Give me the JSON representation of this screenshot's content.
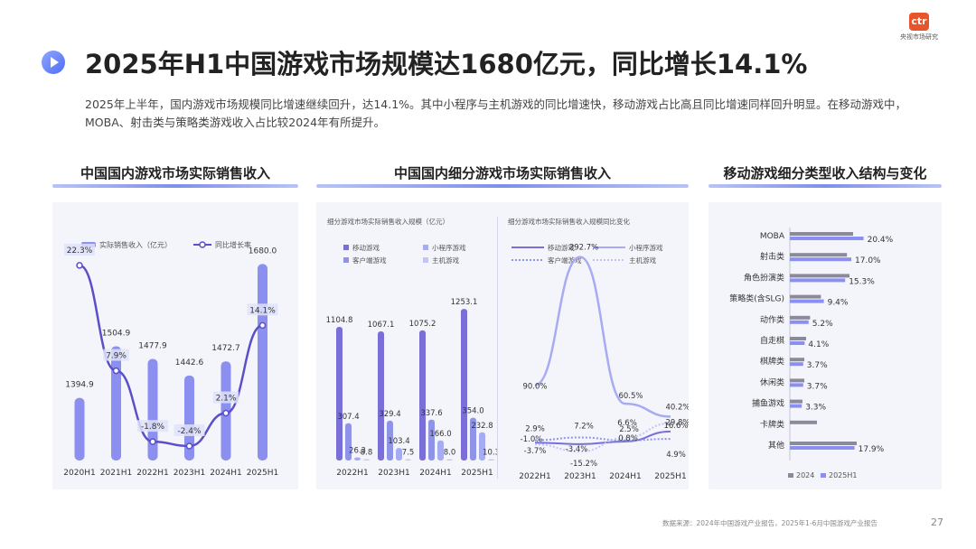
{
  "header": {
    "title": "2025年H1中国游戏市场规模达1680亿元，同比增长14.1%",
    "logo_text": "ctr",
    "logo_subtext": "央视市场研究",
    "description": "2025年上半年，国内游戏市场规模同比增速继续回升，达14.1%。其中小程序与主机游戏的同比增速快，移动游戏占比高且同比增速同样回升明显。在移动游戏中，MOBA、射击类与策略类游戏收入占比较2024年有所提升。"
  },
  "sections": {
    "s1": "中国国内游戏市场实际销售收入",
    "s2": "中国国内细分游戏市场实际销售收入",
    "s3": "移动游戏细分类型收入结构与变化"
  },
  "footer": {
    "source": "数据来源：2024年中国游戏产业报告，2025年1-6月中国游戏产业报告",
    "page": "27"
  },
  "colors": {
    "bar_main": "#8b8ff0",
    "line_main": "#5b4fc8",
    "mobile": "#7a6fd6",
    "mini": "#a7abf2",
    "client": "#8e95e8",
    "console": "#c2c6f5",
    "bar2024": "#8a8a9a",
    "bar2025": "#8b8ff0"
  },
  "chart_data": [
    {
      "type": "bar",
      "categories": [
        "2020H1",
        "2021H1",
        "2022H1",
        "2023H1",
        "2024H1",
        "2025H1"
      ],
      "legend": [
        "实际销售收入（亿元）",
        "同比增长率"
      ],
      "series": [
        {
          "name": "实际销售收入（亿元）",
          "values": [
            1394.9,
            1504.9,
            1477.9,
            1442.6,
            1472.7,
            1680.0
          ],
          "labels": [
            "1394.9",
            "1504.9",
            "1477.9",
            "1442.6",
            "1472.7",
            "1680.0"
          ]
        },
        {
          "name": "同比增长率",
          "type": "line",
          "values": [
            22.3,
            7.9,
            -1.8,
            -2.4,
            2.1,
            14.1
          ],
          "labels": [
            "22.3%",
            "7.9%",
            "-1.8%",
            "-2.4%",
            "2.1%",
            "14.1%"
          ]
        }
      ]
    },
    {
      "type": "bar",
      "subtitle": "细分游戏市场实际销售收入规模（亿元）",
      "categories": [
        "2022H1",
        "2023H1",
        "2024H1",
        "2025H1"
      ],
      "legend": [
        "移动游戏",
        "小程序游戏",
        "客户端游戏",
        "主机游戏"
      ],
      "series": [
        {
          "name": "移动游戏",
          "values": [
            1104.8,
            1067.1,
            1075.2,
            1253.1
          ],
          "labels": [
            "1104.8",
            "1067.1",
            "1075.2",
            "1253.1"
          ]
        },
        {
          "name": "客户端游戏",
          "values": [
            307.4,
            329.4,
            337.6,
            354.0
          ],
          "labels": [
            "307.4",
            "329.4",
            "337.6",
            "354.0"
          ]
        },
        {
          "name": "小程序游戏",
          "values": [
            26.3,
            103.4,
            166.0,
            232.8
          ],
          "labels": [
            "26.3",
            "103.4",
            "166.0",
            "232.8"
          ]
        },
        {
          "name": "主机游戏",
          "values": [
            8.8,
            7.5,
            8.0,
            10.3
          ],
          "labels": [
            "8.8",
            "7.5",
            "8.0",
            "10.3"
          ]
        }
      ]
    },
    {
      "type": "line",
      "subtitle": "细分游戏市场实际销售收入规模同比变化",
      "categories": [
        "2022H1",
        "2023H1",
        "2024H1",
        "2025H1"
      ],
      "legend": [
        "移动游戏",
        "小程序游戏",
        "客户端游戏",
        "主机游戏"
      ],
      "series": [
        {
          "name": "移动游戏",
          "values": [
            -1.0,
            -3.4,
            0.8,
            16.6
          ],
          "labels": [
            "-1.0%",
            "-3.4%",
            "0.8%",
            "16.6%"
          ]
        },
        {
          "name": "小程序游戏",
          "values": [
            90.0,
            292.7,
            60.5,
            40.2
          ],
          "labels": [
            "90.0%",
            "292.7%",
            "60.5%",
            "40.2%"
          ]
        },
        {
          "name": "客户端游戏",
          "values": [
            2.9,
            7.2,
            2.5,
            4.9
          ],
          "labels": [
            "2.9%",
            "7.2%",
            "2.5%",
            "4.9%"
          ]
        },
        {
          "name": "主机游戏",
          "values": [
            -3.7,
            -15.2,
            6.6,
            29.8
          ],
          "labels": [
            "-3.7%",
            "-15.2%",
            "6.6%",
            "29.8%"
          ]
        }
      ]
    },
    {
      "type": "bar",
      "orientation": "horizontal",
      "categories": [
        "MOBA",
        "射击类",
        "角色扮演类",
        "策略类(含SLG)",
        "动作类",
        "自走棋",
        "棋牌类",
        "休闲类",
        "捕鱼游戏",
        "卡牌类",
        "其他"
      ],
      "legend": [
        "2024",
        "2025H1"
      ],
      "series": [
        {
          "name": "2024",
          "values": [
            17.5,
            15.8,
            16.5,
            8.6,
            5.6,
            4.5,
            4.0,
            4.0,
            3.5,
            7.5,
            18.5
          ]
        },
        {
          "name": "2025H1",
          "values": [
            20.4,
            17.0,
            15.3,
            9.4,
            5.2,
            4.1,
            3.7,
            3.7,
            3.3,
            0,
            17.9
          ],
          "labels": [
            "20.4%",
            "17.0%",
            "15.3%",
            "9.4%",
            "5.2%",
            "4.1%",
            "3.7%",
            "3.7%",
            "3.3%",
            "",
            "17.9%"
          ]
        }
      ]
    }
  ]
}
